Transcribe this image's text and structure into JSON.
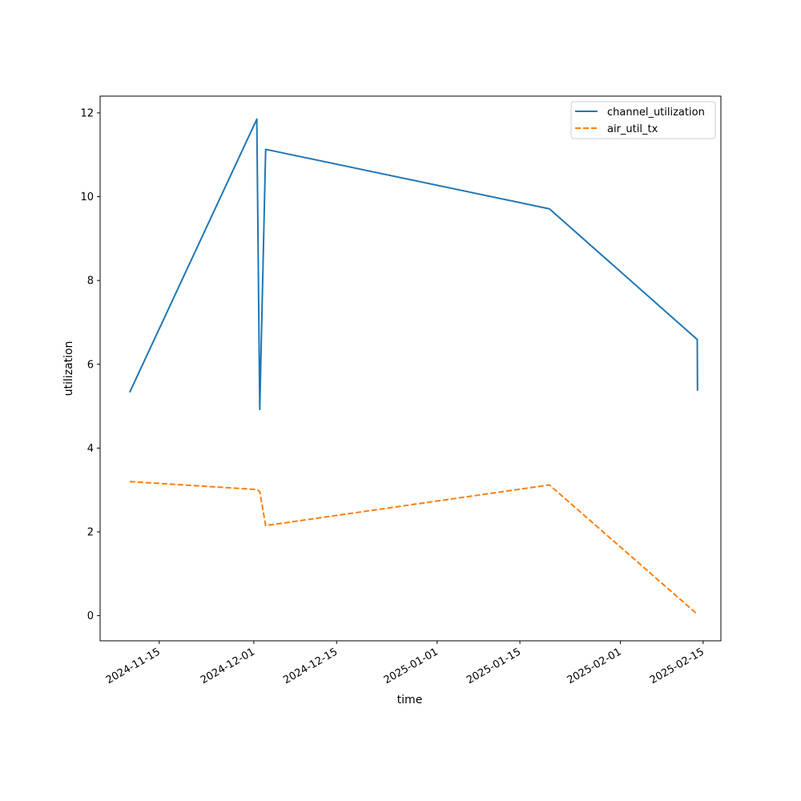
{
  "chart_data": {
    "type": "line",
    "title": "",
    "xlabel": "time",
    "ylabel": "utilization",
    "x_type": "date",
    "xlim": [
      "2024-11-05",
      "2025-02-18"
    ],
    "ylim": [
      -0.6,
      12.4
    ],
    "x_ticks": [
      "2024-11-15",
      "2024-12-01",
      "2024-12-15",
      "2025-01-01",
      "2025-01-15",
      "2025-02-01",
      "2025-02-15"
    ],
    "y_ticks": [
      0,
      2,
      4,
      6,
      8,
      10,
      12
    ],
    "y_tick_labels": [
      "0",
      "2",
      "4",
      "6",
      "8",
      "10",
      "12"
    ],
    "grid": false,
    "legend_position": "top-right",
    "series": [
      {
        "name": "channel_utilization",
        "color": "#1f77b4",
        "style": "solid",
        "points": [
          {
            "x": "2024-11-10",
            "y": 5.33
          },
          {
            "x": "2024-12-01T12:00",
            "y": 11.85
          },
          {
            "x": "2024-12-02",
            "y": 4.92
          },
          {
            "x": "2024-12-03",
            "y": 11.13
          },
          {
            "x": "2025-01-20",
            "y": 9.71
          },
          {
            "x": "2025-02-14",
            "y": 6.59
          },
          {
            "x": "2025-02-14T01:00",
            "y": 5.37
          }
        ]
      },
      {
        "name": "air_util_tx",
        "color": "#ff7f0e",
        "style": "dashed",
        "points": [
          {
            "x": "2024-11-10",
            "y": 3.2
          },
          {
            "x": "2024-12-01T12:00",
            "y": 3.01
          },
          {
            "x": "2024-12-02",
            "y": 2.96
          },
          {
            "x": "2024-12-03",
            "y": 2.15
          },
          {
            "x": "2025-01-20",
            "y": 3.12
          },
          {
            "x": "2025-02-14T01:00",
            "y": 0.03
          }
        ]
      }
    ]
  }
}
